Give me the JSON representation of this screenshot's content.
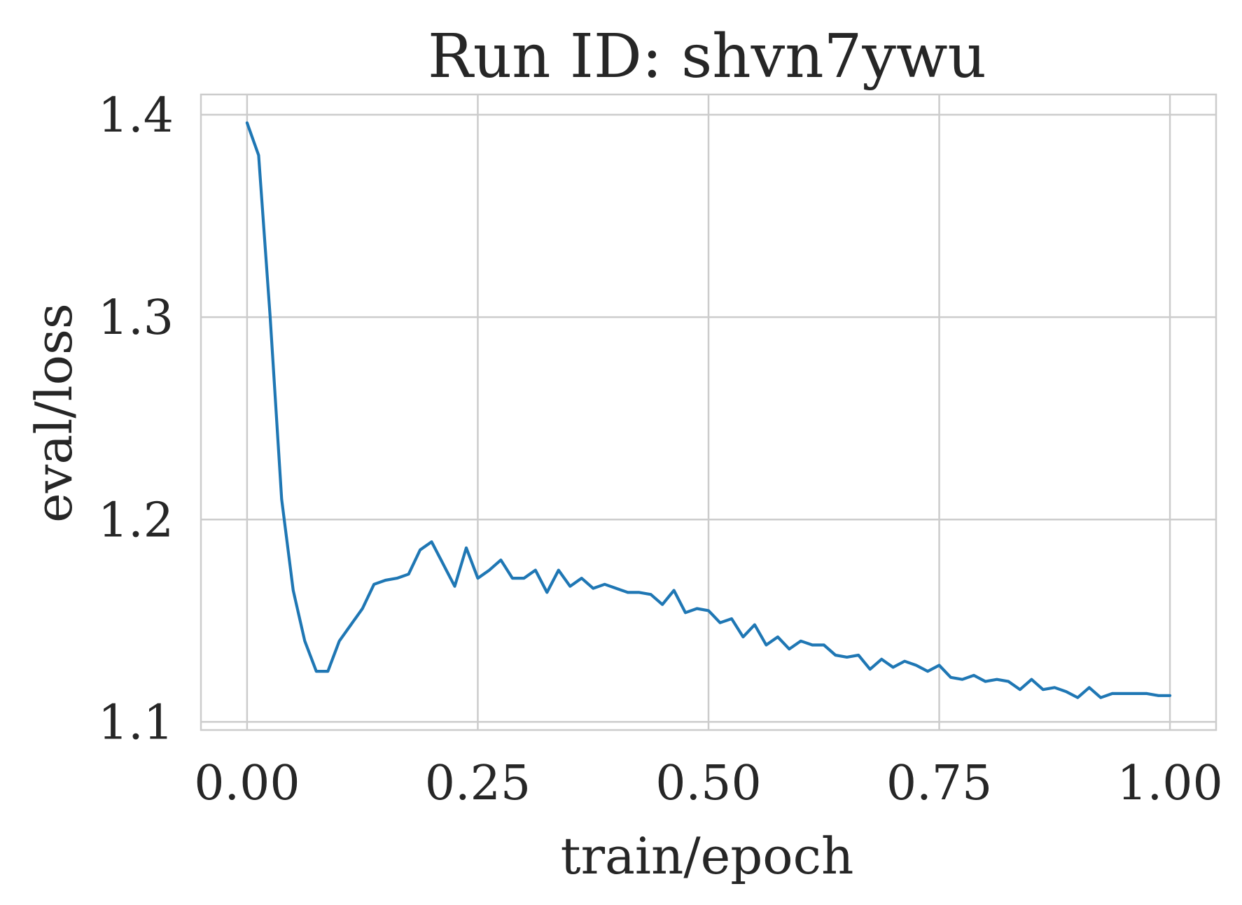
{
  "chart_data": {
    "type": "line",
    "title": "Run ID: shvn7ywu",
    "xlabel": "train/epoch",
    "ylabel": "eval/loss",
    "xlim": [
      -0.05,
      1.05
    ],
    "ylim": [
      1.096,
      1.41
    ],
    "x_ticks": [
      0.0,
      0.25,
      0.5,
      0.75,
      1.0
    ],
    "x_tick_labels": [
      "0.00",
      "0.25",
      "0.50",
      "0.75",
      "1.00"
    ],
    "y_ticks": [
      1.1,
      1.2,
      1.3,
      1.4
    ],
    "y_tick_labels": [
      "1.1",
      "1.2",
      "1.3",
      "1.4"
    ],
    "grid": true,
    "legend": "none",
    "series": [
      {
        "color": "#1f77b4",
        "x": [
          0.0,
          0.0125,
          0.025,
          0.0375,
          0.05,
          0.0625,
          0.075,
          0.0875,
          0.1,
          0.1125,
          0.125,
          0.1375,
          0.15,
          0.1625,
          0.175,
          0.1875,
          0.2,
          0.2125,
          0.225,
          0.2375,
          0.25,
          0.2625,
          0.275,
          0.2875,
          0.3,
          0.3125,
          0.325,
          0.3375,
          0.35,
          0.3625,
          0.375,
          0.3875,
          0.4,
          0.4125,
          0.425,
          0.4375,
          0.45,
          0.4625,
          0.475,
          0.4875,
          0.5,
          0.5125,
          0.525,
          0.5375,
          0.55,
          0.5625,
          0.575,
          0.5875,
          0.6,
          0.6125,
          0.625,
          0.6375,
          0.65,
          0.6625,
          0.675,
          0.6875,
          0.7,
          0.7125,
          0.725,
          0.7375,
          0.75,
          0.7625,
          0.775,
          0.7875,
          0.8,
          0.8125,
          0.825,
          0.8375,
          0.85,
          0.8625,
          0.875,
          0.8875,
          0.9,
          0.9125,
          0.925,
          0.9375,
          0.95,
          0.9625,
          0.975,
          0.9875,
          1.0
        ],
        "y": [
          1.396,
          1.38,
          1.3,
          1.21,
          1.165,
          1.14,
          1.125,
          1.125,
          1.14,
          1.148,
          1.156,
          1.168,
          1.17,
          1.171,
          1.173,
          1.185,
          1.189,
          1.178,
          1.167,
          1.186,
          1.171,
          1.175,
          1.18,
          1.171,
          1.171,
          1.175,
          1.164,
          1.175,
          1.167,
          1.171,
          1.166,
          1.168,
          1.166,
          1.164,
          1.164,
          1.163,
          1.158,
          1.165,
          1.154,
          1.156,
          1.155,
          1.149,
          1.151,
          1.142,
          1.148,
          1.138,
          1.142,
          1.136,
          1.14,
          1.138,
          1.138,
          1.133,
          1.132,
          1.133,
          1.126,
          1.131,
          1.127,
          1.13,
          1.128,
          1.125,
          1.128,
          1.122,
          1.121,
          1.123,
          1.12,
          1.121,
          1.12,
          1.116,
          1.121,
          1.116,
          1.117,
          1.115,
          1.112,
          1.117,
          1.112,
          1.114,
          1.114,
          1.114,
          1.114,
          1.113,
          1.113
        ]
      }
    ]
  }
}
